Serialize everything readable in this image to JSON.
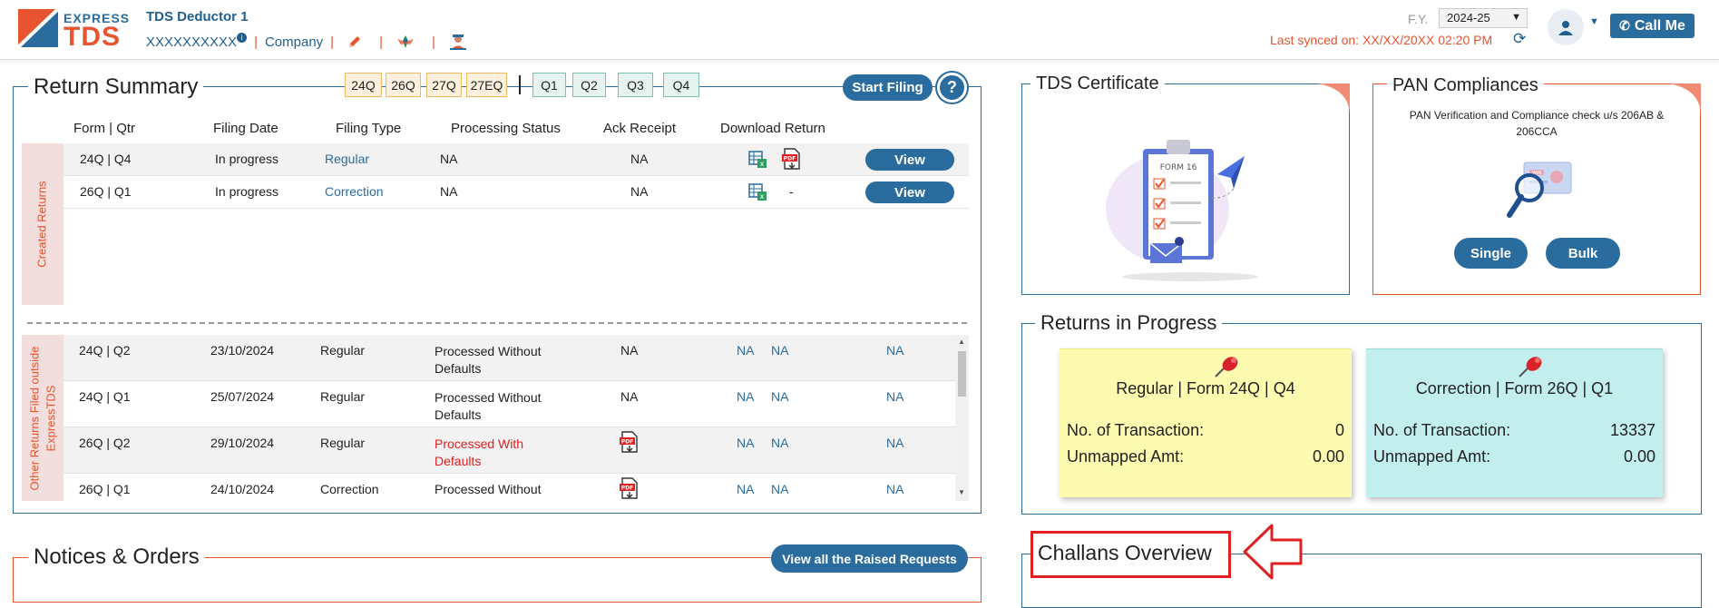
{
  "header": {
    "logo_top": "EXPRESS",
    "logo_bottom": "TDS",
    "deductor_name": "TDS Deductor 1",
    "pan": "XXXXXXXXXX",
    "entity_type": "Company",
    "fy_label": "F.Y.",
    "fy_value": "2024-25",
    "last_synced": "Last synced on: XX/XX/20XX 02:20 PM",
    "call_me": "Call Me"
  },
  "return_summary": {
    "title": "Return Summary",
    "form_chips": [
      "24Q",
      "26Q",
      "27Q",
      "27EQ"
    ],
    "quarter_chips": [
      "Q1",
      "Q2",
      "Q3",
      "Q4"
    ],
    "start_filing": "Start Filing",
    "help": "?",
    "columns": [
      "Form | Qtr",
      "Filing Date",
      "Filing Type",
      "Processing Status",
      "Ack Receipt",
      "Download Return"
    ],
    "created_label": "Created Returns",
    "created_rows": [
      {
        "form_qtr": "24Q | Q4",
        "filing_date": "In progress",
        "filing_type": "Regular",
        "status": "NA",
        "ack": "NA",
        "download_extra": "",
        "action": "View"
      },
      {
        "form_qtr": "26Q | Q1",
        "filing_date": "In progress",
        "filing_type": "Correction",
        "status": "NA",
        "ack": "NA",
        "download_extra": "-",
        "action": "View"
      }
    ],
    "other_label_line1": "Other Returns Filed outside",
    "other_label_line2": "ExpressTDS",
    "other_rows": [
      {
        "form_qtr": "24Q | Q2",
        "filing_date": "23/10/2024",
        "filing_type": "Regular",
        "status_l1": "Processed Without",
        "status_l2": "Defaults",
        "ack": "NA",
        "c1": "NA",
        "c2": "NA",
        "c3": "NA"
      },
      {
        "form_qtr": "24Q | Q1",
        "filing_date": "25/07/2024",
        "filing_type": "Regular",
        "status_l1": "Processed Without",
        "status_l2": "Defaults",
        "ack": "NA",
        "c1": "NA",
        "c2": "NA",
        "c3": "NA"
      },
      {
        "form_qtr": "26Q | Q2",
        "filing_date": "29/10/2024",
        "filing_type": "Regular",
        "status_l1": "Processed With",
        "status_l2": "Defaults",
        "ack": "",
        "c1": "NA",
        "c2": "NA",
        "c3": "NA"
      },
      {
        "form_qtr": "26Q | Q1",
        "filing_date": "24/10/2024",
        "filing_type": "Correction",
        "status_l1": "Processed Without",
        "status_l2": "",
        "ack": "",
        "c1": "NA",
        "c2": "NA",
        "c3": "NA"
      }
    ]
  },
  "notices": {
    "title": "Notices & Orders",
    "view_all": "View all the Raised Requests"
  },
  "tds_certificate": {
    "title": "TDS Certificate",
    "form_label": "FORM 16"
  },
  "pan_compliances": {
    "title": "PAN Compliances",
    "description": "PAN Verification and Compliance check u/s 206AB & 206CCA",
    "card_label": "PAN",
    "single": "Single",
    "bulk": "Bulk"
  },
  "returns_in_progress": {
    "title": "Returns in Progress",
    "cards": [
      {
        "title": "Regular | Form 24Q | Q4",
        "txn_label": "No. of Transaction:",
        "txn_value": "0",
        "amt_label": "Unmapped Amt:",
        "amt_value": "0.00",
        "color": "#fdfbb0"
      },
      {
        "title": "Correction | Form 26Q | Q1",
        "txn_label": "No. of Transaction:",
        "txn_value": "13337",
        "amt_label": "Unmapped Amt:",
        "amt_value": "0.00",
        "color": "#c2efee"
      }
    ]
  },
  "challans": {
    "title": "Challans Overview"
  },
  "colors": {
    "primary": "#2b6c9e",
    "accent": "#e8542f",
    "danger": "#e02020"
  }
}
